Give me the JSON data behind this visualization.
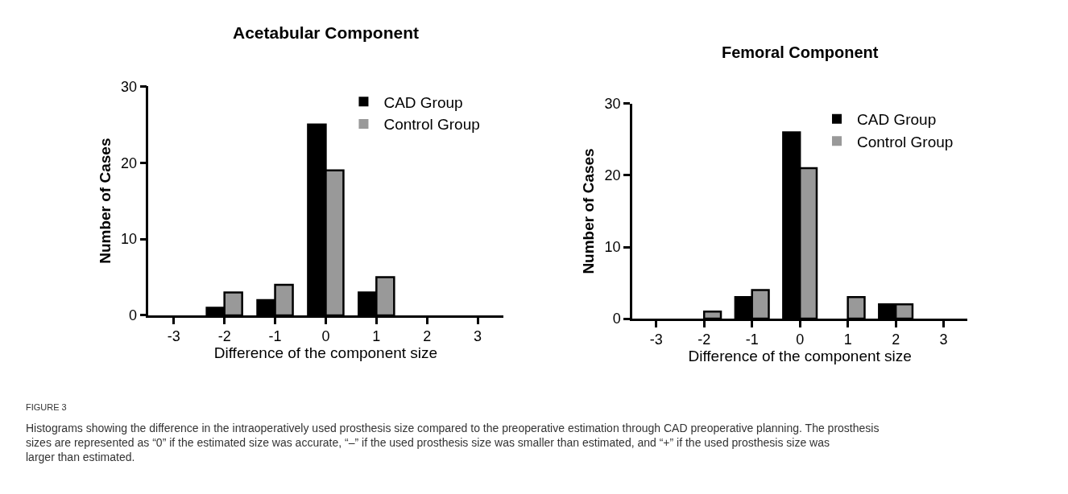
{
  "chart_data": [
    {
      "type": "bar",
      "title": "Acetabular Component",
      "xlabel": "Difference of the component size",
      "ylabel": "Number of Cases",
      "x": [
        -3,
        -2,
        -1,
        0,
        1,
        2,
        3
      ],
      "series": [
        {
          "name": "CAD Group",
          "color": "#000000",
          "values": [
            0,
            1,
            2,
            25,
            3,
            0,
            0
          ]
        },
        {
          "name": "Control Group",
          "color": "#999999",
          "values": [
            0,
            3,
            4,
            19,
            5,
            0,
            0
          ]
        }
      ],
      "xlim": [
        -3.5,
        3.5
      ],
      "xticks": [
        -3,
        -2,
        -1,
        0,
        1,
        2,
        3
      ],
      "ylim": [
        0,
        30
      ],
      "yticks": [
        0,
        10,
        20,
        30
      ],
      "legend": "top right",
      "annotations": [
        "FIGURE 3",
        "Histograms showing the difference in the intraoperatively used prosthesis size compared to the preoperative estimation through CAD preoperative planning. The prosthesis sizes are represented as “0” if the estimated size was accurate, “–” if the used prosthesis size was smaller than estimated, and “+” if the used prosthesis size was larger than estimated."
      ]
    },
    {
      "type": "bar",
      "title": "Femoral Component",
      "xlabel": "Difference of the component size",
      "ylabel": "Number of Cases",
      "x": [
        -3,
        -2,
        -1,
        0,
        1,
        2,
        3
      ],
      "series": [
        {
          "name": "CAD Group",
          "color": "#000000",
          "values": [
            0,
            0,
            3,
            26,
            0,
            2,
            0
          ]
        },
        {
          "name": "Control Group",
          "color": "#999999",
          "values": [
            0,
            1,
            4,
            21,
            3,
            2,
            0
          ]
        }
      ],
      "xlim": [
        -3.5,
        3.5
      ],
      "xticks": [
        -3,
        -2,
        -1,
        0,
        1,
        2,
        3
      ],
      "ylim": [
        0,
        30
      ],
      "yticks": [
        0,
        10,
        20,
        30
      ],
      "legend": "top right"
    }
  ]
}
